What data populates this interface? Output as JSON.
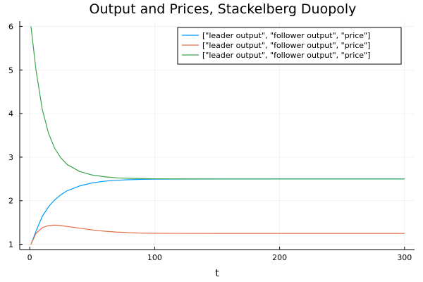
{
  "chart_data": {
    "type": "line",
    "title": "Output and Prices, Stackelberg Duopoly",
    "xlabel": "t",
    "ylabel": "",
    "xlim": [
      -8,
      308
    ],
    "ylim": [
      0.88,
      6.12
    ],
    "xticks": [
      0,
      100,
      200,
      300
    ],
    "yticks": [
      1,
      2,
      3,
      4,
      5,
      6
    ],
    "grid": true,
    "legend_position": "top-right",
    "series": [
      {
        "name": "[\"leader output\", \"follower output\", \"price\"]",
        "color": "#009AFA",
        "x": [
          1,
          5,
          10,
          15,
          20,
          25,
          30,
          40,
          50,
          60,
          70,
          80,
          90,
          100,
          120,
          150,
          200,
          250,
          300
        ],
        "y": [
          1.0,
          1.3,
          1.64,
          1.86,
          2.02,
          2.14,
          2.23,
          2.34,
          2.41,
          2.45,
          2.47,
          2.483,
          2.49,
          2.494,
          2.497,
          2.499,
          2.5,
          2.5,
          2.5
        ]
      },
      {
        "name": "[\"leader output\", \"follower output\", \"price\"]",
        "color": "#E36F47",
        "x": [
          1,
          5,
          10,
          15,
          20,
          25,
          30,
          40,
          50,
          60,
          70,
          80,
          90,
          100,
          120,
          150,
          200,
          250,
          300
        ],
        "y": [
          1.0,
          1.25,
          1.38,
          1.43,
          1.44,
          1.43,
          1.41,
          1.37,
          1.33,
          1.3,
          1.28,
          1.267,
          1.258,
          1.254,
          1.251,
          1.25,
          1.25,
          1.25,
          1.25
        ]
      },
      {
        "name": "[\"leader output\", \"follower output\", \"price\"]",
        "color": "#3EA44E",
        "x": [
          1,
          5,
          10,
          15,
          20,
          25,
          30,
          40,
          50,
          60,
          70,
          80,
          90,
          100,
          120,
          150,
          200,
          250,
          300
        ],
        "y": [
          6.0,
          5.0,
          4.1,
          3.55,
          3.2,
          2.98,
          2.83,
          2.67,
          2.59,
          2.55,
          2.525,
          2.513,
          2.507,
          2.504,
          2.501,
          2.5,
          2.5,
          2.5,
          2.5
        ]
      }
    ]
  }
}
